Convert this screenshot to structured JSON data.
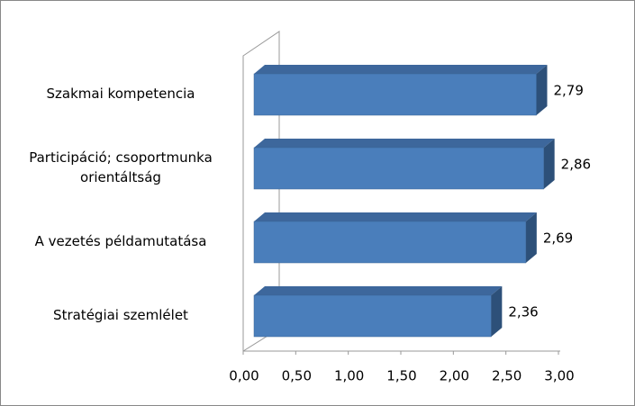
{
  "chart_data": {
    "type": "bar3d_horizontal",
    "categories": [
      "Szakmai kompetencia",
      "Participáció; csoportmunka orientáltság",
      "A vezetés példamutatása",
      "Stratégiai szemlélet"
    ],
    "values": [
      2.79,
      2.86,
      2.69,
      2.36
    ],
    "value_labels": [
      "2,79",
      "2,86",
      "2,69",
      "2,36"
    ],
    "color": "#4a7ebb",
    "xlim": [
      0,
      3
    ],
    "xticks": [
      {
        "value": 0,
        "label": "0,00"
      },
      {
        "value": 0.5,
        "label": "0,50"
      },
      {
        "value": 1,
        "label": "1,00"
      },
      {
        "value": 1.5,
        "label": "1,50"
      },
      {
        "value": 2,
        "label": "2,00"
      },
      {
        "value": 2.5,
        "label": "2,50"
      },
      {
        "value": 3,
        "label": "3,00"
      }
    ]
  }
}
